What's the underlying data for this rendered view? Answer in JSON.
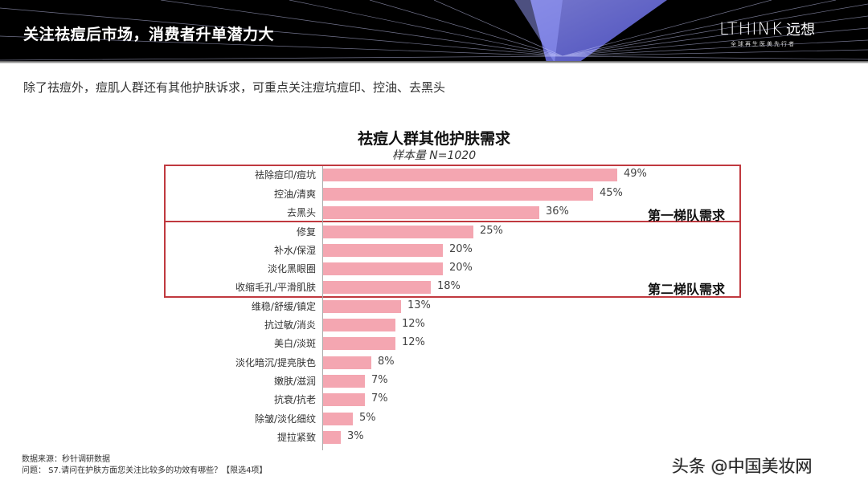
{
  "header": {
    "title": "关注祛痘后市场，消费者升单潜力大",
    "logo": {
      "main": "LTHINK",
      "cn": "远想",
      "tagline": "全球再生医美先行者"
    }
  },
  "subtitle": "除了祛痘外，痘肌人群还有其他护肤诉求，可重点关注痘坑痘印、控油、去黑头",
  "tiers": [
    {
      "label": "第一梯队需求",
      "rows": [
        0,
        2
      ]
    },
    {
      "label": "第二梯队需求",
      "rows": [
        3,
        6
      ]
    }
  ],
  "colors": {
    "bar": "#f4a6b1",
    "tier_border": "#c0393f",
    "header_bg": "#000000"
  },
  "footnotes": {
    "source": "数据来源：秒针调研数据",
    "question": "问题： S7.请问在护肤方面您关注比较多的功效有哪些？【限选4项】"
  },
  "watermark": "头条 @中国美妆网",
  "chart_data": {
    "type": "bar",
    "orientation": "horizontal",
    "title": "祛痘人群其他护肤需求",
    "subtitle": "样本量 N=1020",
    "xlabel": "",
    "ylabel": "",
    "unit": "%",
    "grid": false,
    "legend": null,
    "categories": [
      "祛除痘印/痘坑",
      "控油/清爽",
      "去黑头",
      "修复",
      "补水/保湿",
      "淡化黑眼圈",
      "收缩毛孔/平滑肌肤",
      "维稳/舒缓/镇定",
      "抗过敏/消炎",
      "美白/淡斑",
      "淡化暗沉/提亮肤色",
      "嫩肤/滋润",
      "抗衰/抗老",
      "除皱/淡化细纹",
      "提拉紧致"
    ],
    "values": [
      49,
      45,
      36,
      25,
      20,
      20,
      18,
      13,
      12,
      12,
      8,
      7,
      7,
      5,
      3
    ],
    "labels": [
      "49%",
      "45%",
      "36%",
      "25%",
      "20%",
      "20%",
      "18%",
      "13%",
      "12%",
      "12%",
      "8%",
      "7%",
      "7%",
      "5%",
      "3%"
    ],
    "annotations": [
      "第一梯队需求",
      "第二梯队需求"
    ]
  }
}
